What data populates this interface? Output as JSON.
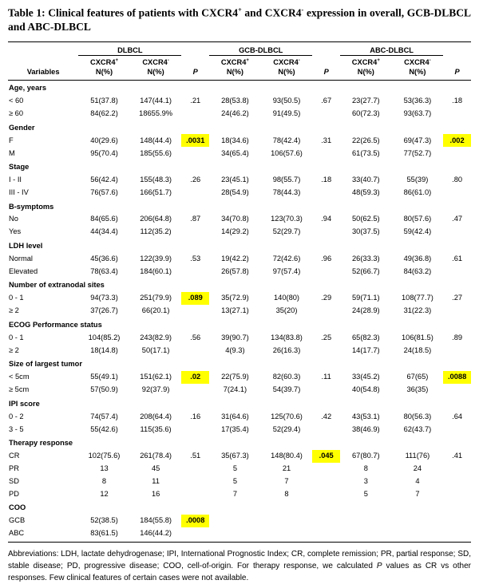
{
  "page": {
    "title_segments": [
      {
        "text": "Table 1: Clinical features of patients with CXCR4"
      },
      {
        "text": "+",
        "sup": true
      },
      {
        "text": " and CXCR4"
      },
      {
        "text": "-",
        "sup": true
      },
      {
        "text": " expression in overall, GCB-DLBCL and ABC-DLBCL"
      }
    ]
  },
  "table": {
    "variables_header": "Variables",
    "groups": [
      {
        "label": "DLBCL"
      },
      {
        "label": "GCB-DLBCL"
      },
      {
        "label": "ABC-DLBCL"
      }
    ],
    "subheaders": {
      "positive": {
        "base": "CXCR4",
        "sup": "+",
        "line2": "N(%)"
      },
      "negative": {
        "base": "CXCR4",
        "sup": "-",
        "line2": "N(%)"
      },
      "p": "P"
    },
    "highlight_color": "#ffff00",
    "rows": [
      {
        "type": "section",
        "label": "Age, years"
      },
      {
        "type": "data",
        "label": "< 60",
        "cells": [
          "51(37.8)",
          "147(44.1)",
          ".21",
          "28(53.8)",
          "93(50.5)",
          ".67",
          "23(27.7)",
          "53(36.3)",
          ".18"
        ],
        "highlights": []
      },
      {
        "type": "data",
        "label": "≥ 60",
        "cells": [
          "84(62.2)",
          "18655.9%",
          "",
          "24(46.2)",
          "91(49.5)",
          "",
          "60(72.3)",
          "93(63.7)",
          ""
        ],
        "highlights": []
      },
      {
        "type": "section",
        "label": "Gender"
      },
      {
        "type": "data",
        "label": "F",
        "cells": [
          "40(29.6)",
          "148(44.4)",
          ".0031",
          "18(34.6)",
          "78(42.4)",
          ".31",
          "22(26.5)",
          "69(47.3)",
          ".002"
        ],
        "highlights": [
          2,
          8
        ]
      },
      {
        "type": "data",
        "label": "M",
        "cells": [
          "95(70.4)",
          "185(55.6)",
          "",
          "34(65.4)",
          "106(57.6)",
          "",
          "61(73.5)",
          "77(52.7)",
          ""
        ],
        "highlights": []
      },
      {
        "type": "section",
        "label": "Stage"
      },
      {
        "type": "data",
        "label": "I - II",
        "cells": [
          "56(42.4)",
          "155(48.3)",
          ".26",
          "23(45.1)",
          "98(55.7)",
          ".18",
          "33(40.7)",
          "55(39)",
          ".80"
        ],
        "highlights": []
      },
      {
        "type": "data",
        "label": "III - IV",
        "cells": [
          "76(57.6)",
          "166(51.7)",
          "",
          "28(54.9)",
          "78(44.3)",
          "",
          "48(59.3)",
          "86(61.0)",
          ""
        ],
        "highlights": []
      },
      {
        "type": "section",
        "label": "B-symptoms"
      },
      {
        "type": "data",
        "label": "No",
        "cells": [
          "84(65.6)",
          "206(64.8)",
          ".87",
          "34(70.8)",
          "123(70.3)",
          ".94",
          "50(62.5)",
          "80(57.6)",
          ".47"
        ],
        "highlights": []
      },
      {
        "type": "data",
        "label": "Yes",
        "cells": [
          "44(34.4)",
          "112(35.2)",
          "",
          "14(29.2)",
          "52(29.7)",
          "",
          "30(37.5)",
          "59(42.4)",
          ""
        ],
        "highlights": []
      },
      {
        "type": "section",
        "label": "LDH level"
      },
      {
        "type": "data",
        "label": "Normal",
        "cells": [
          "45(36.6)",
          "122(39.9)",
          ".53",
          "19(42.2)",
          "72(42.6)",
          ".96",
          "26(33.3)",
          "49(36.8)",
          ".61"
        ],
        "highlights": []
      },
      {
        "type": "data",
        "label": "Elevated",
        "cells": [
          "78(63.4)",
          "184(60.1)",
          "",
          "26(57.8)",
          "97(57.4)",
          "",
          "52(66.7)",
          "84(63.2)",
          ""
        ],
        "highlights": []
      },
      {
        "type": "section",
        "label": "Number of extranodal sites"
      },
      {
        "type": "data",
        "label": "0 - 1",
        "cells": [
          "94(73.3)",
          "251(79.9)",
          ".089",
          "35(72.9)",
          "140(80)",
          ".29",
          "59(71.1)",
          "108(77.7)",
          ".27"
        ],
        "highlights": [
          2
        ]
      },
      {
        "type": "data",
        "label": "≥ 2",
        "cells": [
          "37(26.7)",
          "66(20.1)",
          "",
          "13(27.1)",
          "35(20)",
          "",
          "24(28.9)",
          "31(22.3)",
          ""
        ],
        "highlights": []
      },
      {
        "type": "section",
        "label": "ECOG Performance status"
      },
      {
        "type": "data",
        "label": "0 - 1",
        "cells": [
          "104(85.2)",
          "243(82.9)",
          ".56",
          "39(90.7)",
          "134(83.8)",
          ".25",
          "65(82.3)",
          "106(81.5)",
          ".89"
        ],
        "highlights": []
      },
      {
        "type": "data",
        "label": "≥ 2",
        "cells": [
          "18(14.8)",
          "50(17.1)",
          "",
          "4(9.3)",
          "26(16.3)",
          "",
          "14(17.7)",
          "24(18.5)",
          ""
        ],
        "highlights": []
      },
      {
        "type": "section",
        "label": "Size of largest tumor"
      },
      {
        "type": "data",
        "label": "< 5cm",
        "cells": [
          "55(49.1)",
          "151(62.1)",
          ".02",
          "22(75.9)",
          "82(60.3)",
          ".11",
          "33(45.2)",
          "67(65)",
          ".0088"
        ],
        "highlights": [
          2,
          8
        ]
      },
      {
        "type": "data",
        "label": "≥ 5cm",
        "cells": [
          "57(50.9)",
          "92(37.9)",
          "",
          "7(24.1)",
          "54(39.7)",
          "",
          "40(54.8)",
          "36(35)",
          ""
        ],
        "highlights": []
      },
      {
        "type": "section",
        "label": "IPI score"
      },
      {
        "type": "data",
        "label": "0 - 2",
        "cells": [
          "74(57.4)",
          "208(64.4)",
          ".16",
          "31(64.6)",
          "125(70.6)",
          ".42",
          "43(53.1)",
          "80(56.3)",
          ".64"
        ],
        "highlights": []
      },
      {
        "type": "data",
        "label": "3 - 5",
        "cells": [
          "55(42.6)",
          "115(35.6)",
          "",
          "17(35.4)",
          "52(29.4)",
          "",
          "38(46.9)",
          "62(43.7)",
          ""
        ],
        "highlights": []
      },
      {
        "type": "section",
        "label": "Therapy response"
      },
      {
        "type": "data",
        "label": "CR",
        "cells": [
          "102(75.6)",
          "261(78.4)",
          ".51",
          "35(67.3)",
          "148(80.4)",
          ".045",
          "67(80.7)",
          "111(76)",
          ".41"
        ],
        "highlights": [
          5
        ]
      },
      {
        "type": "data",
        "label": "PR",
        "cells": [
          "13",
          "45",
          "",
          "5",
          "21",
          "",
          "8",
          "24",
          ""
        ],
        "highlights": []
      },
      {
        "type": "data",
        "label": "SD",
        "cells": [
          "8",
          "11",
          "",
          "5",
          "7",
          "",
          "3",
          "4",
          ""
        ],
        "highlights": []
      },
      {
        "type": "data",
        "label": "PD",
        "cells": [
          "12",
          "16",
          "",
          "7",
          "8",
          "",
          "5",
          "7",
          ""
        ],
        "highlights": []
      },
      {
        "type": "section",
        "label": "COO"
      },
      {
        "type": "data",
        "label": "GCB",
        "cells": [
          "52(38.5)",
          "184(55.8)",
          ".0008",
          "",
          "",
          "",
          "",
          "",
          ""
        ],
        "highlights": [
          2
        ]
      },
      {
        "type": "data",
        "label": "ABC",
        "cells": [
          "83(61.5)",
          "146(44.2)",
          "",
          "",
          "",
          "",
          "",
          "",
          ""
        ],
        "highlights": []
      }
    ]
  },
  "footnote": {
    "segments": [
      {
        "text": "Abbreviations: LDH, lactate dehydrogenase; IPI, International Prognostic Index; CR, complete remission; PR, partial response; SD, stable disease; PD, progressive disease; COO, cell-of-origin. For therapy response, we calculated "
      },
      {
        "text": "P",
        "italic": true
      },
      {
        "text": " values as CR vs other responses. Few clinical features of certain cases were not available."
      }
    ]
  }
}
